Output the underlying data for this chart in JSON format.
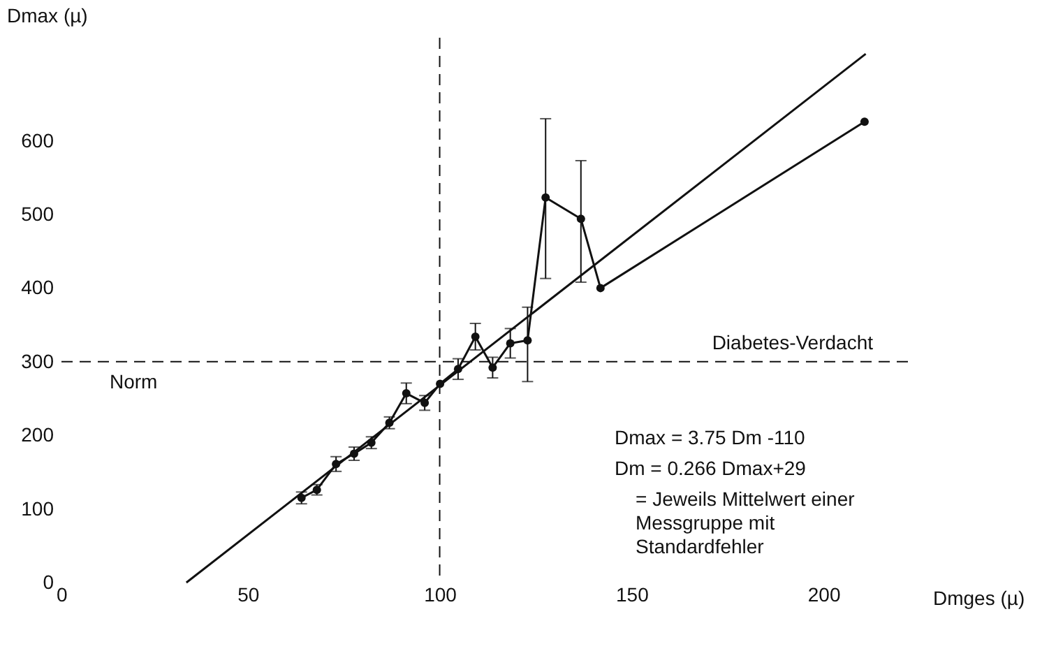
{
  "chart_data": {
    "type": "line",
    "xlabel": "Dmges (µ)",
    "ylabel": "Dmax (µ)",
    "xlim": [
      0,
      222
    ],
    "ylim": [
      0,
      740
    ],
    "xticks": [
      0,
      50,
      100,
      150,
      200
    ],
    "yticks": [
      0,
      100,
      200,
      300,
      400,
      500,
      600
    ],
    "grid": false,
    "legend": false,
    "series": [
      {
        "marker": "circle",
        "line_style": "solid",
        "color": "#111111",
        "x": [
          64,
          68,
          73,
          77.7,
          82.2,
          86.9,
          91.3,
          96.1,
          100.1,
          104.8,
          109.3,
          113.8,
          118.4,
          122.9,
          127.6,
          136.8,
          141.9,
          210.7
        ],
        "values": [
          115,
          126,
          161,
          175,
          190,
          217,
          257,
          244,
          270,
          290,
          334,
          292,
          325,
          329,
          523,
          494,
          400,
          626
        ],
        "errors": [
          8,
          7,
          10,
          9,
          8,
          8,
          14,
          10,
          null,
          14,
          18,
          14,
          20,
          [
            273,
            374
          ],
          [
            413,
            630
          ],
          [
            408,
            573
          ],
          null,
          null
        ]
      },
      {
        "marker": "none",
        "line_style": "solid",
        "color": "#111111",
        "x": [
          34,
          211
        ],
        "values": [
          0,
          718
        ]
      }
    ],
    "ref_lines": [
      {
        "axis": "x",
        "value": 100,
        "line_style": "dashed",
        "color": "#111111"
      },
      {
        "axis": "y",
        "value": 300,
        "line_style": "dashed",
        "color": "#111111",
        "label": "Diabetes-Verdacht"
      }
    ],
    "annotations": [
      {
        "text": "Norm",
        "x": 14,
        "y": 300
      },
      "Dmax = 3.75 Dm -110",
      "Dm    = 0.266 Dmax+29",
      "= Jeweils Mittelwert einer\nMessgruppe mit\nStandardfehler"
    ]
  }
}
